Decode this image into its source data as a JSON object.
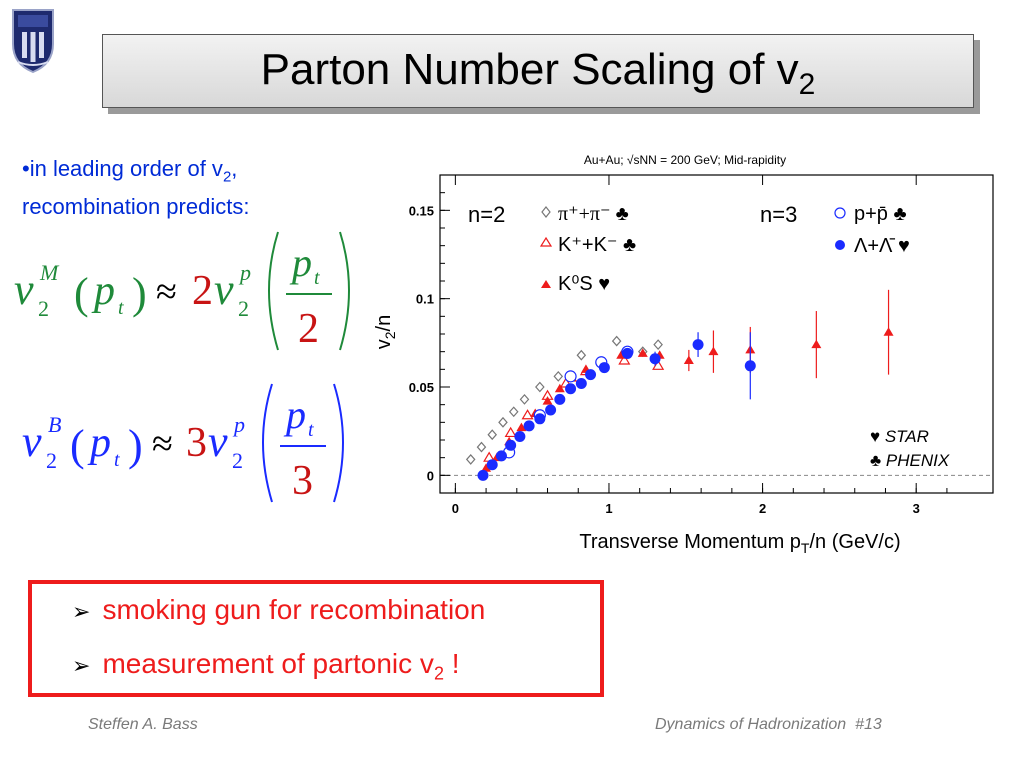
{
  "slide": {
    "title_main": "Parton Number Scaling of v",
    "title_sub": "2",
    "bullet_line1_pre": "•in leading order of v",
    "bullet_line1_sub": "2",
    "bullet_line1_post": ",",
    "bullet_line2": "recombination predicts:",
    "eq1": {
      "v": "v",
      "sub": "2",
      "sup": "M",
      "arg": "p",
      "argsub": "t",
      "approx": "≈",
      "coef": "2",
      "frac_num": "p",
      "frac_den": "2",
      "sup_p": "p"
    },
    "eq2": {
      "v": "v",
      "sub": "2",
      "sup": "B",
      "arg": "p",
      "argsub": "t",
      "approx": "≈",
      "coef": "3",
      "frac_num": "p",
      "frac_den": "3",
      "sup_p": "p"
    },
    "box_line1": "smoking gun for recombination",
    "box_line2_pre": "measurement of partonic v",
    "box_line2_sub": "2",
    "box_line2_post": " !",
    "footer_left": "Steffen A. Bass",
    "footer_right": "Dynamics of Hadronization  #13",
    "colors": {
      "accent_red": "#ee1c1c",
      "bullet_blue": "#002bd6",
      "green": "#1f8a3a"
    }
  },
  "chart_data": {
    "type": "scatter",
    "title": "Au+Au; √sNN = 200 GeV; Mid-rapidity",
    "xlabel": "Transverse Momentum pT/n (GeV/c)",
    "ylabel": "v2/n",
    "xlim": [
      -0.1,
      3.5
    ],
    "ylim": [
      -0.01,
      0.17
    ],
    "xticks": [
      "0",
      "1",
      "2",
      "3"
    ],
    "yticks": [
      "0",
      "0.05",
      "0.1",
      "0.15"
    ],
    "legend_text": {
      "n2": "n=2",
      "n3": "n=3",
      "pi": "π⁺+π⁻ ♣",
      "k": "K⁺+K⁻ ♣",
      "ks": "K⁰S ♥",
      "p": "p+p̄ ♣",
      "lam": "Λ+Λ̄ ♥",
      "star": "♥ STAR",
      "phenix": "♣ PHENIX"
    },
    "series": [
      {
        "name": "π⁺+π⁻",
        "marker": "open-diamond",
        "color": "#777777",
        "points": [
          [
            0.1,
            0.009
          ],
          [
            0.17,
            0.016
          ],
          [
            0.24,
            0.023
          ],
          [
            0.31,
            0.03
          ],
          [
            0.38,
            0.036
          ],
          [
            0.45,
            0.043
          ],
          [
            0.55,
            0.05
          ],
          [
            0.67,
            0.056
          ],
          [
            0.82,
            0.068
          ],
          [
            1.05,
            0.076
          ],
          [
            1.22,
            0.07
          ],
          [
            1.32,
            0.074
          ]
        ]
      },
      {
        "name": "K⁺+K⁻",
        "marker": "open-triangle",
        "color": "#ee1c1c",
        "points": [
          [
            0.22,
            0.01
          ],
          [
            0.36,
            0.024
          ],
          [
            0.47,
            0.034
          ],
          [
            0.6,
            0.045
          ],
          [
            0.72,
            0.052
          ],
          [
            0.85,
            0.059
          ],
          [
            1.1,
            0.065
          ],
          [
            1.32,
            0.062
          ]
        ]
      },
      {
        "name": "K⁰S",
        "marker": "filled-triangle",
        "color": "#ee1c1c",
        "points": [
          [
            0.2,
            0.004
          ],
          [
            0.27,
            0.01
          ],
          [
            0.35,
            0.019
          ],
          [
            0.43,
            0.027
          ],
          [
            0.52,
            0.035
          ],
          [
            0.6,
            0.042
          ],
          [
            0.68,
            0.049
          ],
          [
            0.76,
            0.055
          ],
          [
            0.85,
            0.06
          ],
          [
            0.95,
            0.064
          ],
          [
            1.08,
            0.068
          ],
          [
            1.22,
            0.069
          ],
          [
            1.33,
            0.068
          ],
          [
            1.52,
            0.065
          ],
          [
            1.68,
            0.07
          ],
          [
            1.92,
            0.071
          ],
          [
            2.35,
            0.074
          ],
          [
            2.82,
            0.081
          ]
        ],
        "errors": [
          0,
          0,
          0,
          0,
          0,
          0,
          0,
          0,
          0,
          0,
          0,
          0,
          0,
          0.006,
          0.012,
          0.013,
          0.019,
          0.024
        ]
      },
      {
        "name": "p+p̄",
        "marker": "open-circle",
        "color": "#1a2bff",
        "points": [
          [
            0.35,
            0.013
          ],
          [
            0.55,
            0.034
          ],
          [
            0.75,
            0.056
          ],
          [
            0.95,
            0.064
          ],
          [
            1.12,
            0.07
          ]
        ]
      },
      {
        "name": "Λ+Λ̄",
        "marker": "filled-circle",
        "color": "#1a2bff",
        "points": [
          [
            0.18,
            0.0
          ],
          [
            0.24,
            0.006
          ],
          [
            0.3,
            0.011
          ],
          [
            0.36,
            0.017
          ],
          [
            0.42,
            0.022
          ],
          [
            0.48,
            0.028
          ],
          [
            0.55,
            0.032
          ],
          [
            0.62,
            0.037
          ],
          [
            0.68,
            0.043
          ],
          [
            0.75,
            0.049
          ],
          [
            0.82,
            0.052
          ],
          [
            0.88,
            0.057
          ],
          [
            0.97,
            0.061
          ],
          [
            1.12,
            0.069
          ],
          [
            1.3,
            0.066
          ],
          [
            1.58,
            0.074
          ],
          [
            1.92,
            0.062
          ]
        ],
        "errors": [
          0,
          0,
          0,
          0,
          0,
          0,
          0,
          0,
          0,
          0,
          0,
          0,
          0,
          0.003,
          0.004,
          0.007,
          0.019
        ]
      }
    ]
  }
}
